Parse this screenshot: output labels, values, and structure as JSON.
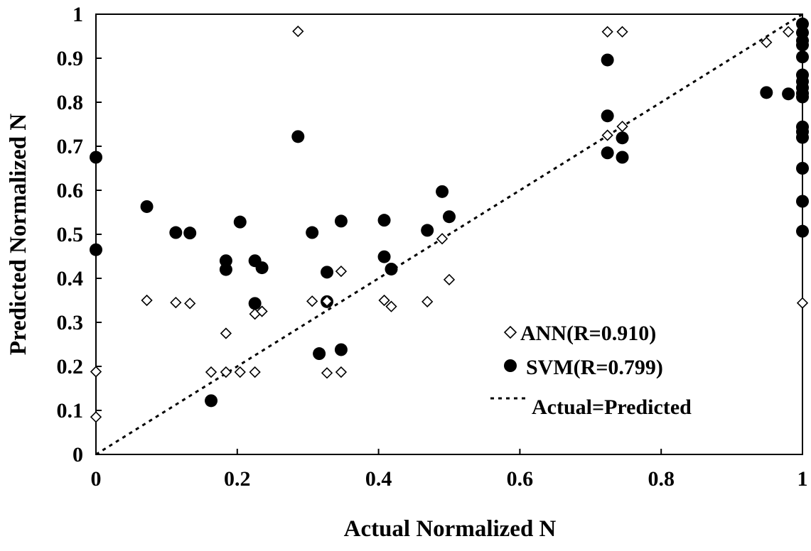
{
  "chart_data": {
    "type": "scatter",
    "title": "",
    "xlabel": "Actual Normalized N",
    "ylabel": "Predicted Normalized N",
    "xlim": [
      0,
      1
    ],
    "ylim": [
      0,
      1
    ],
    "x_ticks": [
      "0",
      "0.2",
      "0.4",
      "0.6",
      "0.8",
      "1"
    ],
    "y_ticks": [
      "0",
      "0.1",
      "0.2",
      "0.3",
      "0.4",
      "0.5",
      "0.6",
      "0.7",
      "0.8",
      "0.9",
      "1"
    ],
    "grid": false,
    "legend_position": "bottom-right",
    "series": [
      {
        "name": "ANN(R=0.910)",
        "marker": "diamond-open",
        "color": "#000000",
        "points": [
          [
            0,
            0.188
          ],
          [
            0,
            0.085
          ],
          [
            0.072,
            0.35
          ],
          [
            0.113,
            0.345
          ],
          [
            0.133,
            0.343
          ],
          [
            0.163,
            0.187
          ],
          [
            0.184,
            0.187
          ],
          [
            0.184,
            0.275
          ],
          [
            0.204,
            0.187
          ],
          [
            0.225,
            0.187
          ],
          [
            0.225,
            0.319
          ],
          [
            0.235,
            0.325
          ],
          [
            0.286,
            0.961
          ],
          [
            0.306,
            0.348
          ],
          [
            0.327,
            0.348
          ],
          [
            0.327,
            0.185
          ],
          [
            0.347,
            0.187
          ],
          [
            0.347,
            0.416
          ],
          [
            0.408,
            0.35
          ],
          [
            0.418,
            0.336
          ],
          [
            0.469,
            0.347
          ],
          [
            0.49,
            0.49
          ],
          [
            0.5,
            0.397
          ],
          [
            0.724,
            0.725
          ],
          [
            0.724,
            0.96
          ],
          [
            0.745,
            0.96
          ],
          [
            0.745,
            0.745
          ],
          [
            0.949,
            0.936
          ],
          [
            0.98,
            0.96
          ],
          [
            1.0,
            0.344
          ]
        ]
      },
      {
        "name": "SVM(R=0.799)",
        "marker": "circle-filled",
        "color": "#000000",
        "points": [
          [
            0,
            0.675
          ],
          [
            0,
            0.465
          ],
          [
            0.072,
            0.563
          ],
          [
            0.113,
            0.504
          ],
          [
            0.133,
            0.503
          ],
          [
            0.163,
            0.122
          ],
          [
            0.184,
            0.44
          ],
          [
            0.184,
            0.42
          ],
          [
            0.204,
            0.528
          ],
          [
            0.225,
            0.44
          ],
          [
            0.225,
            0.343
          ],
          [
            0.235,
            0.424
          ],
          [
            0.286,
            0.722
          ],
          [
            0.306,
            0.504
          ],
          [
            0.316,
            0.229
          ],
          [
            0.327,
            0.414
          ],
          [
            0.327,
            0.347
          ],
          [
            0.347,
            0.53
          ],
          [
            0.347,
            0.238
          ],
          [
            0.408,
            0.532
          ],
          [
            0.408,
            0.449
          ],
          [
            0.418,
            0.421
          ],
          [
            0.469,
            0.509
          ],
          [
            0.49,
            0.597
          ],
          [
            0.5,
            0.54
          ],
          [
            0.724,
            0.896
          ],
          [
            0.724,
            0.769
          ],
          [
            0.724,
            0.685
          ],
          [
            0.745,
            0.719
          ],
          [
            0.745,
            0.675
          ],
          [
            0.949,
            0.822
          ],
          [
            0.98,
            0.819
          ],
          [
            1.0,
            0.978
          ],
          [
            1.0,
            0.958
          ],
          [
            1.0,
            0.94
          ],
          [
            1.0,
            0.93
          ],
          [
            1.0,
            0.903
          ],
          [
            1.0,
            0.862
          ],
          [
            1.0,
            0.847
          ],
          [
            1.0,
            0.833
          ],
          [
            1.0,
            0.82
          ],
          [
            1.0,
            0.812
          ],
          [
            1.0,
            0.744
          ],
          [
            1.0,
            0.733
          ],
          [
            1.0,
            0.72
          ],
          [
            1.0,
            0.65
          ],
          [
            1.0,
            0.575
          ],
          [
            1.0,
            0.507
          ]
        ]
      },
      {
        "name": "Actual=Predicted",
        "marker": "line-dotted",
        "color": "#000000",
        "points": [
          [
            0,
            0
          ],
          [
            1,
            1
          ]
        ]
      }
    ]
  }
}
